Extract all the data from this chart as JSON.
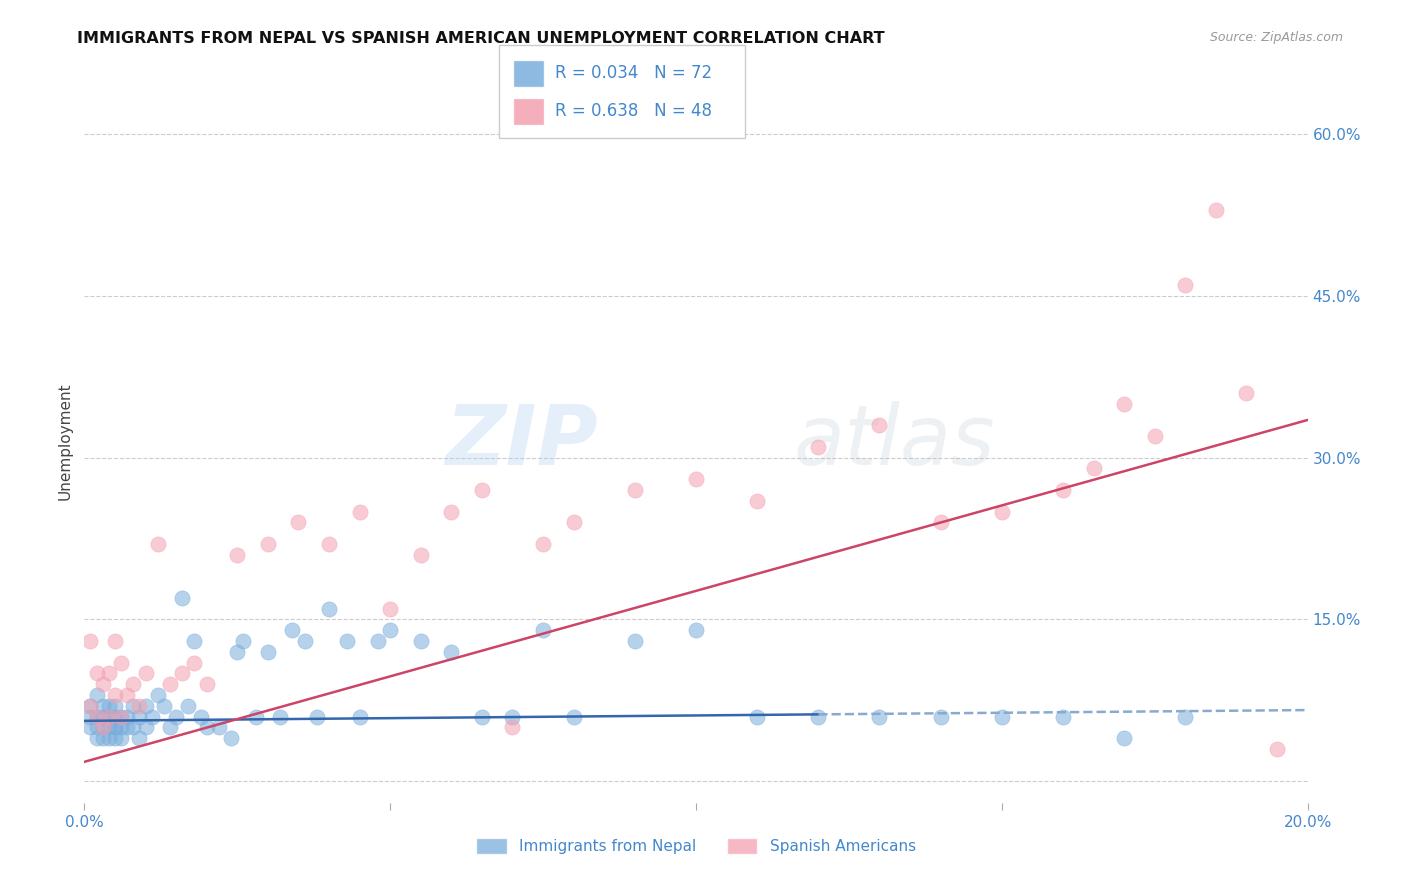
{
  "title": "IMMIGRANTS FROM NEPAL VS SPANISH AMERICAN UNEMPLOYMENT CORRELATION CHART",
  "source": "Source: ZipAtlas.com",
  "ylabel": "Unemployment",
  "xlim": [
    0.0,
    0.2
  ],
  "ylim": [
    -0.02,
    0.65
  ],
  "yticks": [
    0.0,
    0.15,
    0.3,
    0.45,
    0.6
  ],
  "ytick_labels": [
    "",
    "15.0%",
    "30.0%",
    "45.0%",
    "60.0%"
  ],
  "xticks": [
    0.0,
    0.05,
    0.1,
    0.15,
    0.2
  ],
  "background_color": "#ffffff",
  "grid_color": "#cccccc",
  "blue_color": "#7aaddc",
  "pink_color": "#f4a0b0",
  "blue_edge": "#5588bb",
  "pink_edge": "#e07090",
  "blue_label": "Immigrants from Nepal",
  "pink_label": "Spanish Americans",
  "R_blue": 0.034,
  "N_blue": 72,
  "R_pink": 0.638,
  "N_pink": 48,
  "tick_label_color": "#4488cc",
  "title_color": "#111111",
  "ylabel_color": "#444444",
  "nepal_x": [
    0.001,
    0.001,
    0.001,
    0.002,
    0.002,
    0.002,
    0.002,
    0.003,
    0.003,
    0.003,
    0.003,
    0.004,
    0.004,
    0.004,
    0.004,
    0.005,
    0.005,
    0.005,
    0.005,
    0.005,
    0.006,
    0.006,
    0.006,
    0.007,
    0.007,
    0.008,
    0.008,
    0.009,
    0.009,
    0.01,
    0.01,
    0.011,
    0.012,
    0.013,
    0.014,
    0.015,
    0.016,
    0.017,
    0.018,
    0.019,
    0.02,
    0.022,
    0.024,
    0.025,
    0.026,
    0.028,
    0.03,
    0.032,
    0.034,
    0.036,
    0.038,
    0.04,
    0.043,
    0.045,
    0.048,
    0.05,
    0.055,
    0.06,
    0.065,
    0.07,
    0.075,
    0.08,
    0.09,
    0.1,
    0.11,
    0.12,
    0.13,
    0.14,
    0.15,
    0.16,
    0.17,
    0.18
  ],
  "nepal_y": [
    0.06,
    0.05,
    0.07,
    0.04,
    0.06,
    0.08,
    0.05,
    0.05,
    0.07,
    0.04,
    0.06,
    0.05,
    0.07,
    0.04,
    0.06,
    0.05,
    0.06,
    0.07,
    0.05,
    0.04,
    0.05,
    0.06,
    0.04,
    0.05,
    0.06,
    0.05,
    0.07,
    0.04,
    0.06,
    0.05,
    0.07,
    0.06,
    0.08,
    0.07,
    0.05,
    0.06,
    0.17,
    0.07,
    0.13,
    0.06,
    0.05,
    0.05,
    0.04,
    0.12,
    0.13,
    0.06,
    0.12,
    0.06,
    0.14,
    0.13,
    0.06,
    0.16,
    0.13,
    0.06,
    0.13,
    0.14,
    0.13,
    0.12,
    0.06,
    0.06,
    0.14,
    0.06,
    0.13,
    0.14,
    0.06,
    0.06,
    0.06,
    0.06,
    0.06,
    0.06,
    0.04,
    0.06
  ],
  "spanish_x": [
    0.001,
    0.001,
    0.002,
    0.002,
    0.003,
    0.003,
    0.004,
    0.004,
    0.005,
    0.005,
    0.006,
    0.006,
    0.007,
    0.008,
    0.009,
    0.01,
    0.012,
    0.014,
    0.016,
    0.018,
    0.02,
    0.025,
    0.03,
    0.035,
    0.04,
    0.045,
    0.05,
    0.055,
    0.06,
    0.065,
    0.07,
    0.075,
    0.08,
    0.09,
    0.1,
    0.11,
    0.12,
    0.13,
    0.14,
    0.15,
    0.16,
    0.165,
    0.17,
    0.175,
    0.18,
    0.185,
    0.19,
    0.195
  ],
  "spanish_y": [
    0.07,
    0.13,
    0.06,
    0.1,
    0.05,
    0.09,
    0.06,
    0.1,
    0.08,
    0.13,
    0.06,
    0.11,
    0.08,
    0.09,
    0.07,
    0.1,
    0.22,
    0.09,
    0.1,
    0.11,
    0.09,
    0.21,
    0.22,
    0.24,
    0.22,
    0.25,
    0.16,
    0.21,
    0.25,
    0.27,
    0.05,
    0.22,
    0.24,
    0.27,
    0.28,
    0.26,
    0.31,
    0.33,
    0.24,
    0.25,
    0.27,
    0.29,
    0.35,
    0.32,
    0.46,
    0.53,
    0.36,
    0.03
  ]
}
